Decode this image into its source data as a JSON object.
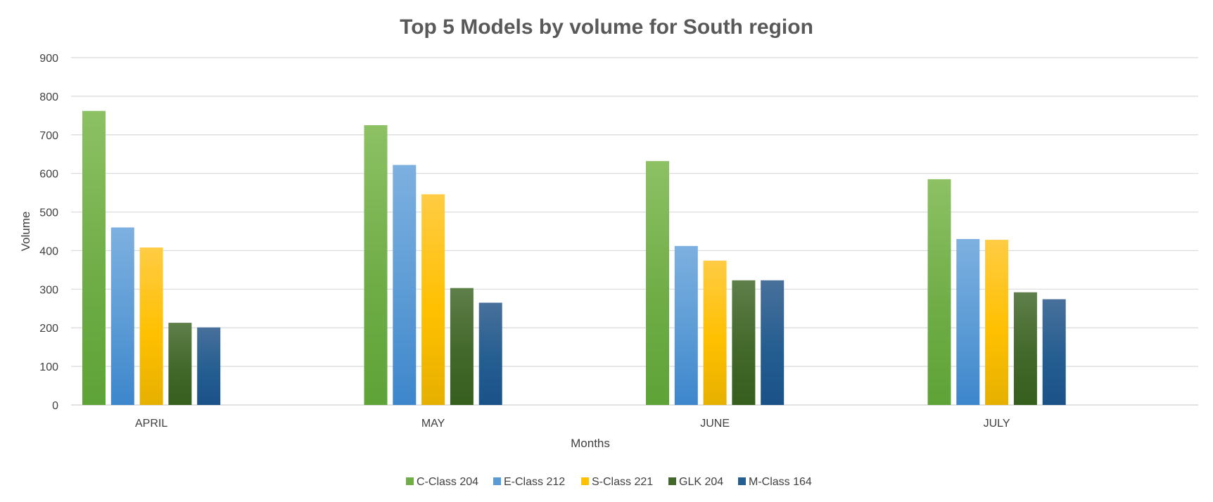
{
  "chart_data": {
    "type": "bar",
    "title": "Top 5 Models by volume for South region",
    "xlabel": "Months",
    "ylabel": "Volume",
    "categories": [
      "APRIL",
      "MAY",
      "JUNE",
      "JULY"
    ],
    "ylim": [
      0,
      900
    ],
    "yticks": [
      0,
      100,
      200,
      300,
      400,
      500,
      600,
      700,
      800,
      900
    ],
    "grid": true,
    "legend_position": "bottom",
    "series": [
      {
        "name": "C-Class 204",
        "values": [
          762,
          725,
          632,
          585
        ],
        "color": "#70ad47",
        "color_light": "#8dc164",
        "color_dark": "#5ea337"
      },
      {
        "name": "E-Class 212",
        "values": [
          460,
          622,
          412,
          430
        ],
        "color": "#5b9bd5",
        "color_light": "#7db0e0",
        "color_dark": "#3d86cc"
      },
      {
        "name": "S-Class 221",
        "values": [
          408,
          546,
          374,
          428
        ],
        "color": "#ffc000",
        "color_light": "#ffcc44",
        "color_dark": "#e6b000"
      },
      {
        "name": "GLK 204",
        "values": [
          213,
          303,
          323,
          292
        ],
        "color": "#43682b",
        "color_light": "#5f7f4a",
        "color_dark": "#365e1d"
      },
      {
        "name": "M-Class 164",
        "values": [
          201,
          265,
          323,
          274
        ],
        "color": "#255e91",
        "color_light": "#48709b",
        "color_dark": "#1a5288"
      }
    ]
  }
}
